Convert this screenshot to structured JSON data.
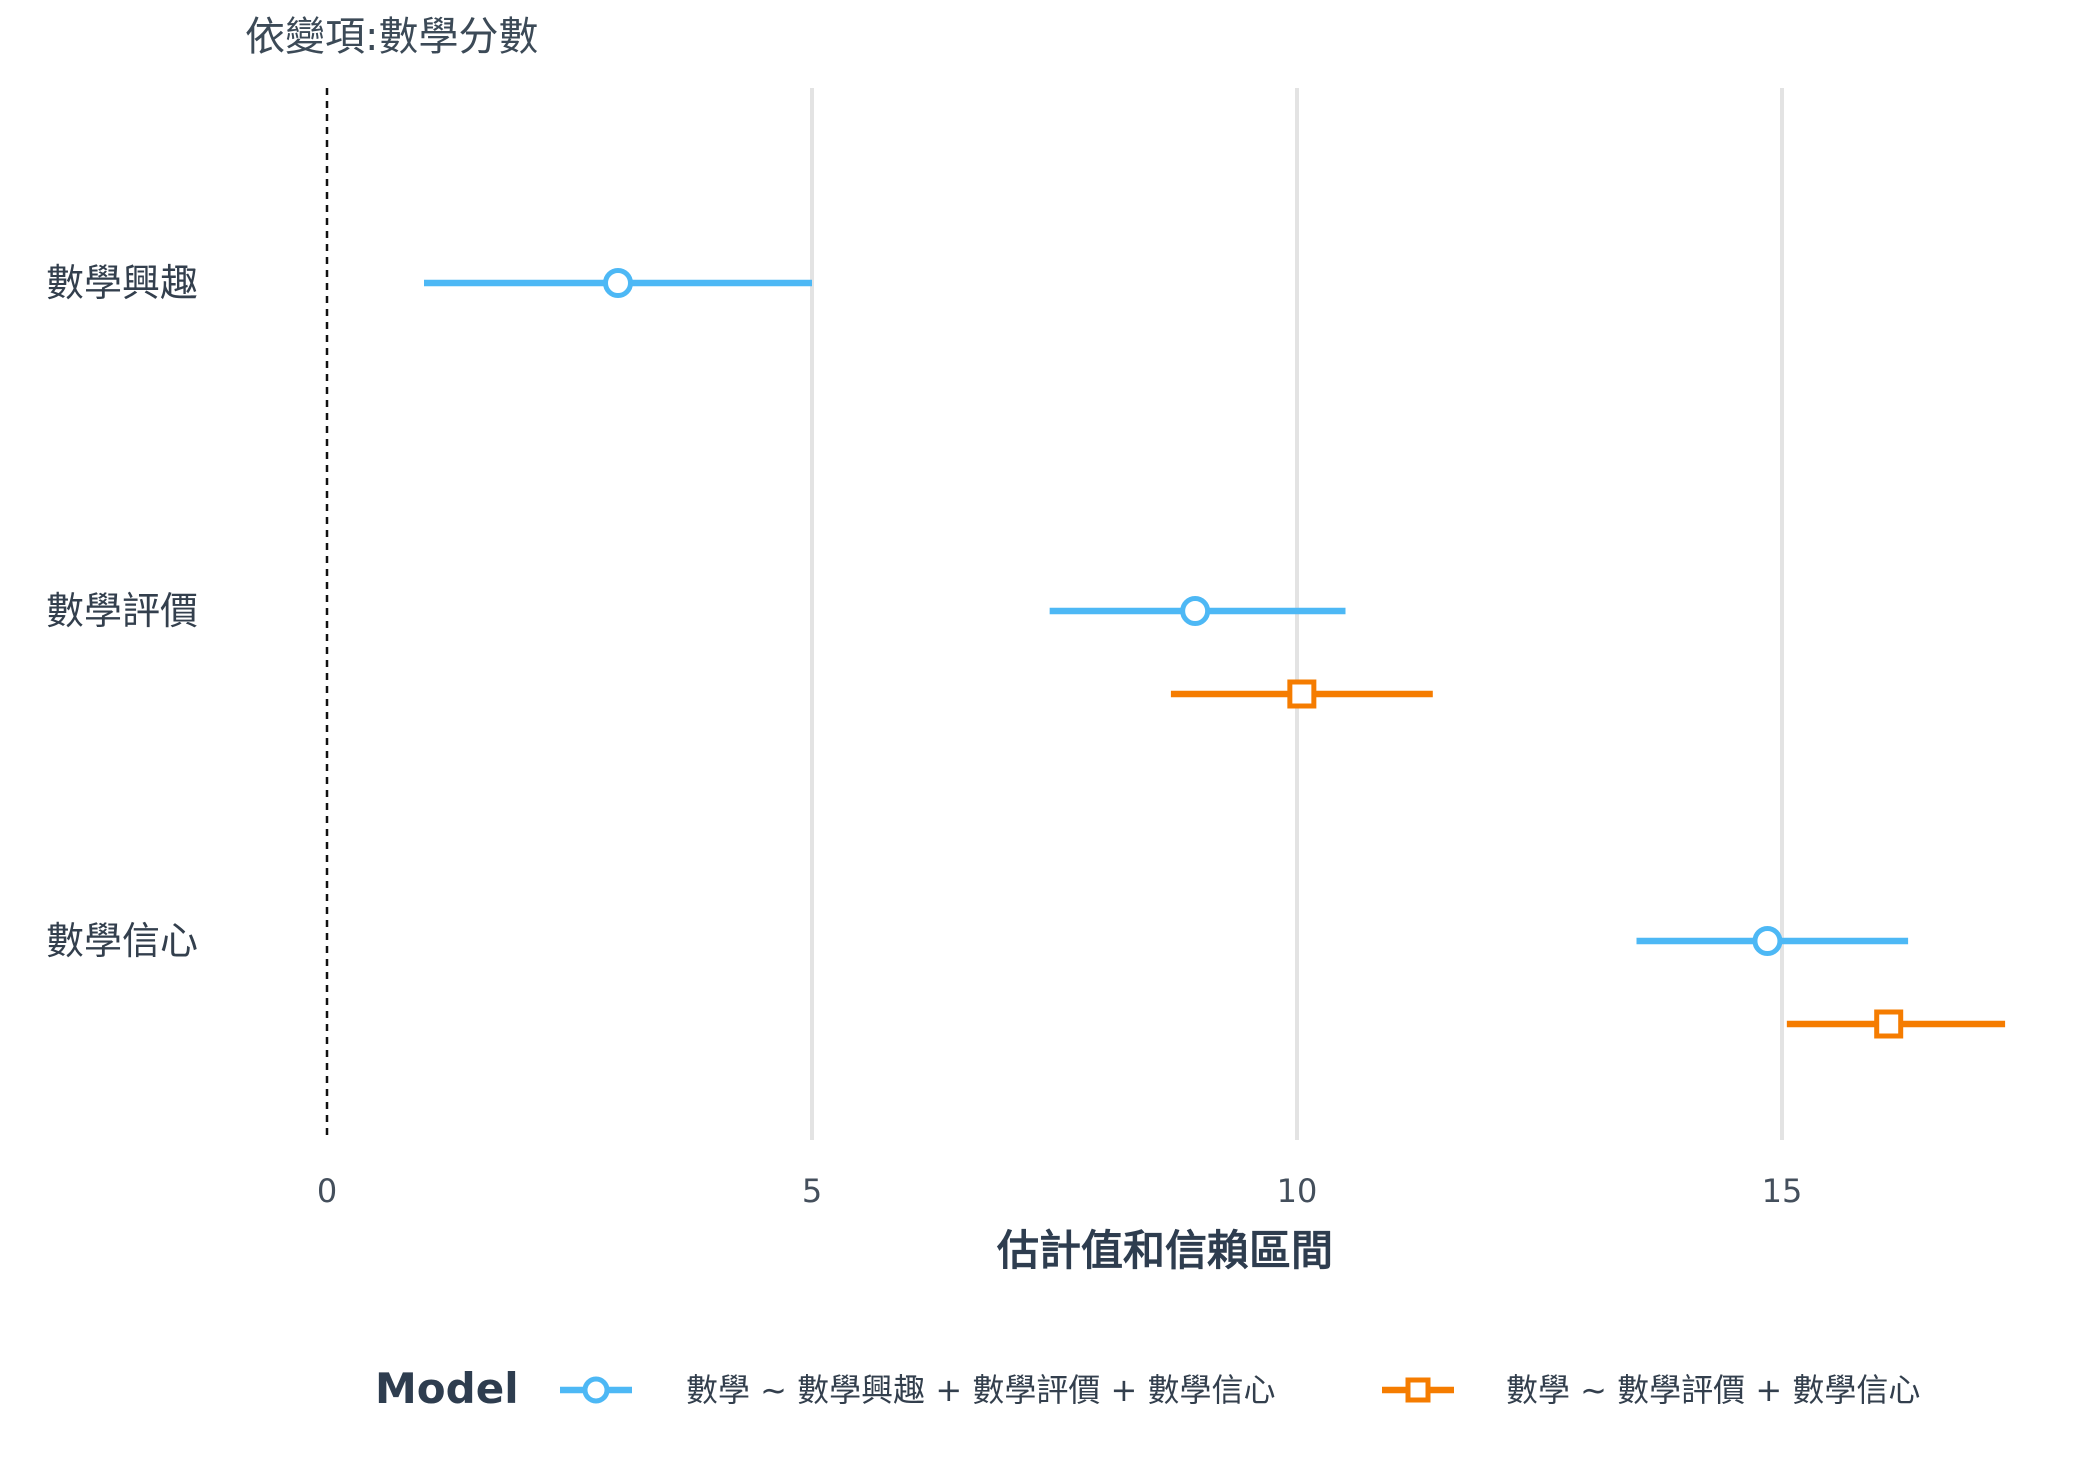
{
  "chart_data": {
    "type": "scatter",
    "subtitle": "依變項:數學分數",
    "xlabel": "估計值和信賴區間",
    "xlim": [
      0,
      17.5
    ],
    "xticks": [
      "0",
      "5",
      "10",
      "15"
    ],
    "reference_line_x": 0,
    "grid": "vertical",
    "categories": [
      "數學興趣",
      "數學評價",
      "數學信心"
    ],
    "legend_title": "Model",
    "legend_position": "bottom",
    "series": [
      {
        "name": "數學 ~ 數學興趣 + 數學評價 + 數學信心",
        "color": "#4db8f5",
        "marker": "circle",
        "points": [
          {
            "category": "數學興趣",
            "estimate": 3.0,
            "lower": 1.0,
            "upper": 5.0
          },
          {
            "category": "數學評價",
            "estimate": 8.95,
            "lower": 7.45,
            "upper": 10.5
          },
          {
            "category": "數學信心",
            "estimate": 14.85,
            "lower": 13.5,
            "upper": 16.3
          }
        ]
      },
      {
        "name": "數學 ~ 數學評價 + 數學信心",
        "color": "#f57c00",
        "marker": "square",
        "points": [
          {
            "category": "數學評價",
            "estimate": 10.05,
            "lower": 8.7,
            "upper": 11.4
          },
          {
            "category": "數學信心",
            "estimate": 16.1,
            "lower": 15.05,
            "upper": 17.3
          }
        ]
      }
    ]
  }
}
